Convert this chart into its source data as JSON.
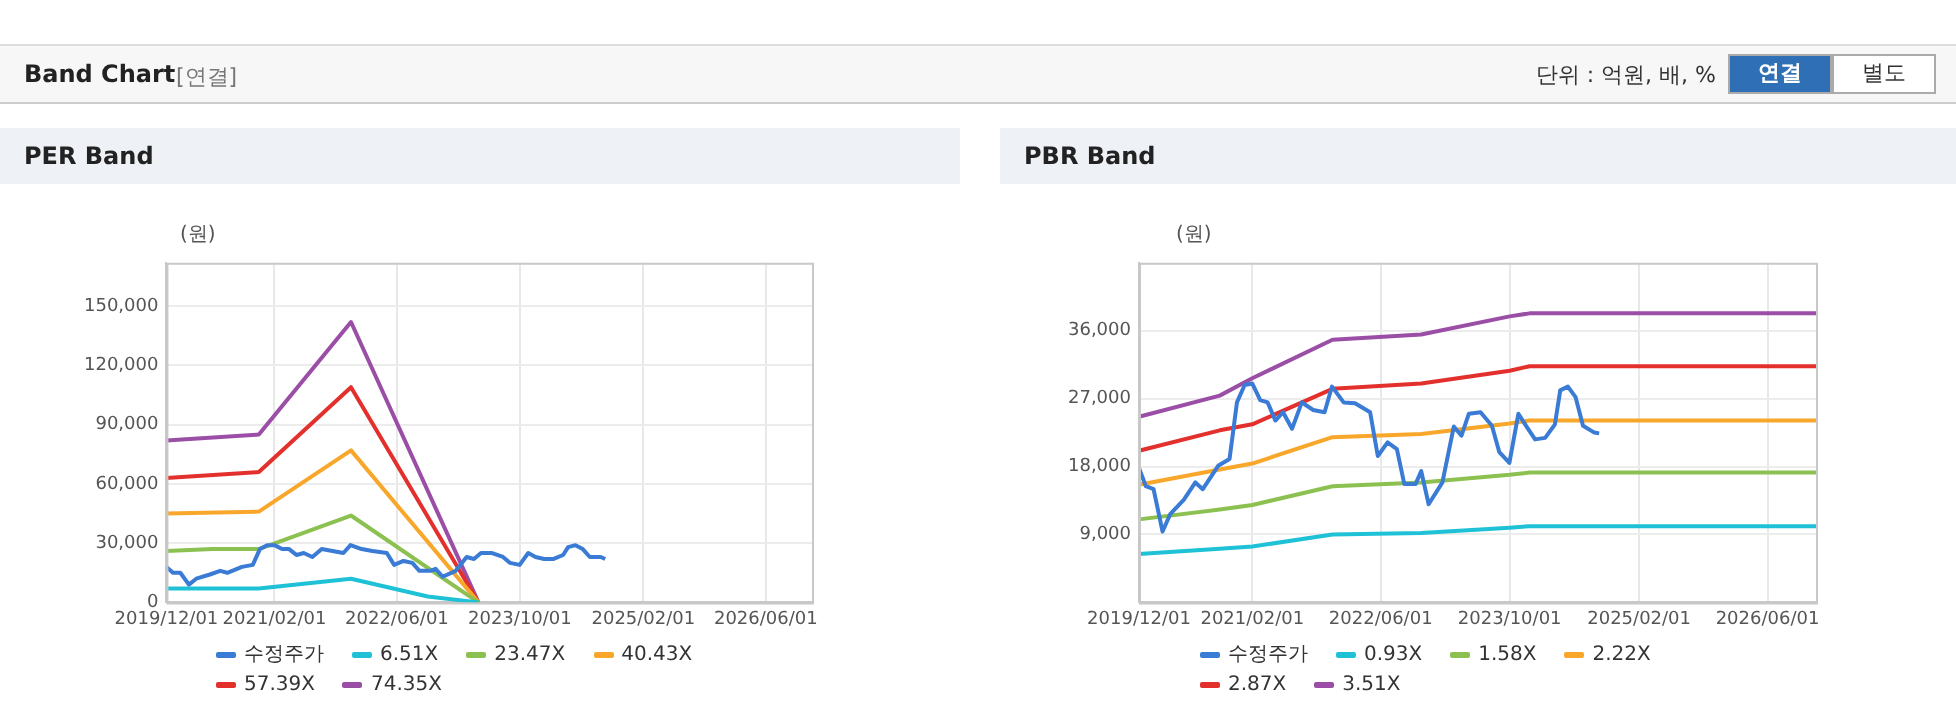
{
  "chart_data": [
    {
      "type": "other",
      "title": "Band Chart",
      "subtitle": "[연결]",
      "annotations": [
        "단위 : 억원, 배, %",
        "연결",
        "별도"
      ]
    },
    {
      "type": "line",
      "title": "PER Band",
      "ylabel": "(원)",
      "legend": "bottom",
      "grid": true,
      "xlim": [
        "2019-12-01",
        "2026-12-01"
      ],
      "xticks": [
        {
          "value": "2019-12-01",
          "label": "2019/12/01"
        },
        {
          "value": "2021-02-01",
          "label": "2021/02/01"
        },
        {
          "value": "2022-06-01",
          "label": "2022/06/01"
        },
        {
          "value": "2023-10-01",
          "label": "2023/10/01"
        },
        {
          "value": "2025-02-01",
          "label": "2025/02/01"
        },
        {
          "value": "2026-06-01",
          "label": "2026/06/01"
        }
      ],
      "ylim": [
        0,
        172000
      ],
      "yticks": [
        {
          "value": 0,
          "label": "0"
        },
        {
          "value": 30000,
          "label": "30,000"
        },
        {
          "value": 60000,
          "label": "60,000"
        },
        {
          "value": 90000,
          "label": "90,000"
        },
        {
          "value": 120000,
          "label": "120,000"
        },
        {
          "value": 150000,
          "label": "150,000"
        }
      ],
      "series": [
        {
          "name": "수정주가",
          "color": "#3a7bd5",
          "x": [
            "2019-12-01",
            "2019-12-27",
            "2020-01-25",
            "2020-02-28",
            "2020-03-28",
            "2020-05-18",
            "2020-07-01",
            "2020-07-29",
            "2020-09-25",
            "2020-11-07",
            "2020-12-05",
            "2021-01-03",
            "2021-02-01",
            "2021-03-03",
            "2021-03-31",
            "2021-04-29",
            "2021-05-28",
            "2021-07-01",
            "2021-08-07",
            "2021-09-19",
            "2021-11-01",
            "2021-11-29",
            "2022-01-12",
            "2022-02-24",
            "2022-04-22",
            "2022-05-21",
            "2022-06-27",
            "2022-08-01",
            "2022-08-29",
            "2022-10-11",
            "2022-11-01",
            "2022-11-29",
            "2023-01-20",
            "2023-03-04",
            "2023-04-02",
            "2023-04-30",
            "2023-06-13",
            "2023-07-26",
            "2023-08-23",
            "2023-09-30",
            "2023-11-03",
            "2023-12-02",
            "2024-01-05",
            "2024-02-12",
            "2024-03-20",
            "2024-04-09",
            "2024-05-08",
            "2024-06-06",
            "2024-07-04",
            "2024-08-16",
            "2024-09-03"
          ],
          "values": [
            18000,
            15000,
            15000,
            9000,
            12000,
            14000,
            16000,
            15000,
            18000,
            19000,
            27000,
            29000,
            29000,
            27000,
            27000,
            24000,
            25000,
            23000,
            27000,
            26000,
            25000,
            29000,
            27000,
            26000,
            25000,
            19000,
            21000,
            20000,
            16000,
            16000,
            17000,
            13000,
            16000,
            23000,
            22000,
            25000,
            25000,
            23000,
            20000,
            19000,
            25000,
            23000,
            22000,
            22000,
            24000,
            28000,
            29000,
            27000,
            23000,
            23000,
            22000
          ]
        },
        {
          "name": "6.51X",
          "color": "#1fc1d6",
          "x": [
            "2019-12-01",
            "2020-12-01",
            "2021-12-01",
            "2022-10-01",
            "2023-04-20"
          ],
          "values": [
            7000,
            7000,
            12000,
            3000,
            0
          ]
        },
        {
          "name": "23.47X",
          "color": "#8cc152",
          "x": [
            "2019-12-01",
            "2020-06-01",
            "2020-12-01",
            "2021-12-01",
            "2023-04-20"
          ],
          "values": [
            26000,
            27000,
            27000,
            44000,
            0
          ]
        },
        {
          "name": "40.43X",
          "color": "#f8a72a",
          "x": [
            "2019-12-01",
            "2020-12-01",
            "2021-12-01",
            "2023-04-20"
          ],
          "values": [
            45000,
            46000,
            77000,
            0
          ]
        },
        {
          "name": "57.39X",
          "color": "#e3302c",
          "x": [
            "2019-12-01",
            "2020-12-01",
            "2021-12-01",
            "2023-04-20"
          ],
          "values": [
            63000,
            66000,
            109000,
            0
          ]
        },
        {
          "name": "74.35X",
          "color": "#9b4ea6",
          "x": [
            "2019-12-01",
            "2020-12-01",
            "2021-12-01",
            "2023-04-20"
          ],
          "values": [
            82000,
            85000,
            142000,
            0
          ]
        }
      ]
    },
    {
      "type": "line",
      "title": "PBR Band",
      "ylabel": "(원)",
      "legend": "bottom",
      "grid": true,
      "xlim": [
        "2019-12-01",
        "2026-12-01"
      ],
      "xticks": [
        {
          "value": "2019-12-01",
          "label": "2019/12/01"
        },
        {
          "value": "2021-02-01",
          "label": "2021/02/01"
        },
        {
          "value": "2022-06-01",
          "label": "2022/06/01"
        },
        {
          "value": "2023-10-01",
          "label": "2023/10/01"
        },
        {
          "value": "2025-02-01",
          "label": "2025/02/01"
        },
        {
          "value": "2026-06-01",
          "label": "2026/06/01"
        }
      ],
      "ylim": [
        0,
        45000
      ],
      "yticks": [
        {
          "value": 0,
          "label": null
        },
        {
          "value": 9000,
          "label": "9,000"
        },
        {
          "value": 18000,
          "label": "18,000"
        },
        {
          "value": 27000,
          "label": "27,000"
        },
        {
          "value": 36000,
          "label": "36,000"
        }
      ],
      "series": [
        {
          "name": "수정주가",
          "color": "#3a7bd5",
          "x": [
            "2019-12-01",
            "2019-12-27",
            "2020-01-25",
            "2020-02-28",
            "2020-03-28",
            "2020-05-18",
            "2020-07-01",
            "2020-07-29",
            "2020-09-25",
            "2020-11-07",
            "2020-12-05",
            "2021-01-03",
            "2021-02-01",
            "2021-03-03",
            "2021-03-31",
            "2021-04-29",
            "2021-05-28",
            "2021-07-01",
            "2021-08-07",
            "2021-09-19",
            "2021-11-01",
            "2021-11-29",
            "2022-01-12",
            "2022-02-24",
            "2022-04-22",
            "2022-05-21",
            "2022-06-27",
            "2022-08-01",
            "2022-08-29",
            "2022-10-11",
            "2022-11-01",
            "2022-11-29",
            "2023-01-20",
            "2023-03-04",
            "2023-04-02",
            "2023-04-30",
            "2023-06-13",
            "2023-07-26",
            "2023-08-23",
            "2023-09-30",
            "2023-11-03",
            "2023-12-02",
            "2024-01-05",
            "2024-02-12",
            "2024-03-20",
            "2024-04-09",
            "2024-05-08",
            "2024-06-06",
            "2024-07-04",
            "2024-08-16",
            "2024-09-03"
          ],
          "values": [
            17800,
            15400,
            15000,
            9400,
            11700,
            13600,
            15900,
            15000,
            18100,
            19000,
            26500,
            28800,
            29000,
            26800,
            26500,
            24100,
            25200,
            23000,
            26500,
            25500,
            25200,
            28600,
            26500,
            26400,
            25200,
            19400,
            21200,
            20300,
            15700,
            15700,
            17400,
            13000,
            15900,
            23300,
            22100,
            25000,
            25200,
            23400,
            19900,
            18500,
            25000,
            23400,
            21600,
            21800,
            23600,
            28100,
            28600,
            27200,
            23400,
            22500,
            22400
          ]
        },
        {
          "name": "0.93X",
          "color": "#1fc1d6",
          "x": [
            "2019-12-01",
            "2020-10-01",
            "2021-02-01",
            "2021-12-01",
            "2022-11-01",
            "2023-10-01",
            "2023-12-15",
            "2026-12-01"
          ],
          "values": [
            6400,
            7100,
            7400,
            9000,
            9200,
            9900,
            10100,
            10100
          ]
        },
        {
          "name": "1.58X",
          "color": "#8cc152",
          "x": [
            "2019-12-01",
            "2020-10-01",
            "2021-02-01",
            "2021-12-01",
            "2022-11-01",
            "2023-10-01",
            "2023-12-15",
            "2026-12-01"
          ],
          "values": [
            11000,
            12300,
            12900,
            15400,
            15900,
            16900,
            17200,
            17200
          ]
        },
        {
          "name": "2.22X",
          "color": "#f8a72a",
          "x": [
            "2019-12-01",
            "2020-10-01",
            "2021-02-01",
            "2021-12-01",
            "2022-11-01",
            "2023-10-01",
            "2023-12-15",
            "2026-12-01"
          ],
          "values": [
            15600,
            17600,
            18400,
            21900,
            22300,
            23700,
            24100,
            24100
          ]
        },
        {
          "name": "2.87X",
          "color": "#e3302c",
          "x": [
            "2019-12-01",
            "2020-10-01",
            "2021-02-01",
            "2021-12-01",
            "2022-11-01",
            "2023-10-01",
            "2023-12-15",
            "2026-12-01"
          ],
          "values": [
            20100,
            22800,
            23600,
            28300,
            29000,
            30700,
            31300,
            31300
          ]
        },
        {
          "name": "3.51X",
          "color": "#9b4ea6",
          "x": [
            "2019-12-01",
            "2020-10-01",
            "2021-02-01",
            "2021-12-01",
            "2022-11-01",
            "2023-10-01",
            "2023-12-15",
            "2026-12-01"
          ],
          "values": [
            24600,
            27400,
            29700,
            34800,
            35500,
            37900,
            38300,
            38300
          ]
        }
      ]
    }
  ]
}
